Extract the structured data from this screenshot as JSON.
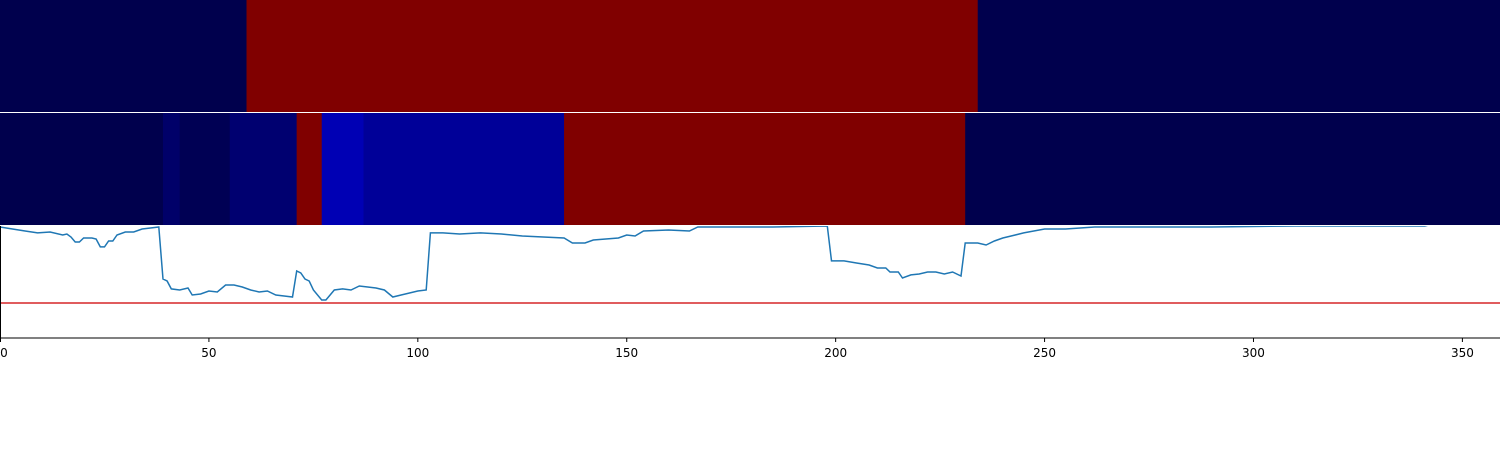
{
  "chart_data": {
    "type": "heatmap-line",
    "colormap": "seismic",
    "xlim": [
      0,
      359
    ],
    "xticks": [
      0,
      50,
      100,
      150,
      200,
      250,
      300,
      350
    ],
    "heatmaps": [
      {
        "segments": [
          {
            "start": 0,
            "end": 59,
            "value": 0
          },
          {
            "start": 59,
            "end": 234,
            "value": 1
          },
          {
            "start": 234,
            "end": 359,
            "value": 0
          }
        ]
      },
      {
        "segments": [
          {
            "start": 0,
            "end": 39,
            "value": 0
          },
          {
            "start": 39,
            "end": 43,
            "value": 0.04
          },
          {
            "start": 43,
            "end": 55,
            "value": 0.01
          },
          {
            "start": 55,
            "end": 71,
            "value": 0.05
          },
          {
            "start": 71,
            "end": 77,
            "value": 1
          },
          {
            "start": 77,
            "end": 87,
            "value": 0.145
          },
          {
            "start": 87,
            "end": 135,
            "value": 0.106
          },
          {
            "start": 135,
            "end": 231,
            "value": 1
          },
          {
            "start": 231,
            "end": 359,
            "value": 0
          }
        ]
      }
    ],
    "ylim": [
      0,
      1
    ],
    "threshold": 0.312,
    "threshold_color": "#d62728",
    "line_color": "#1f77b4",
    "x": [
      0,
      3,
      6,
      9,
      12,
      15,
      16,
      17,
      18,
      19,
      20,
      22,
      23,
      24,
      25,
      26,
      27,
      28,
      30,
      32,
      34,
      36,
      38,
      39,
      40,
      41,
      43,
      45,
      46,
      48,
      50,
      52,
      54,
      56,
      58,
      60,
      62,
      64,
      66,
      68,
      70,
      71,
      72,
      73,
      74,
      75,
      77,
      78,
      79,
      80,
      82,
      84,
      86,
      88,
      90,
      92,
      94,
      96,
      98,
      100,
      102,
      103,
      106,
      110,
      115,
      120,
      125,
      130,
      135,
      137,
      140,
      142,
      145,
      148,
      150,
      152,
      154,
      160,
      165,
      167,
      175,
      185,
      198,
      199,
      202,
      205,
      208,
      210,
      212,
      213,
      215,
      216,
      218,
      220,
      222,
      224,
      226,
      228,
      230,
      231,
      234,
      236,
      238,
      240,
      242,
      245,
      250,
      255,
      262,
      270,
      290,
      310,
      330,
      341,
      343,
      359
    ],
    "values": [
      0.991,
      0.973,
      0.955,
      0.938,
      0.946,
      0.92,
      0.929,
      0.902,
      0.857,
      0.857,
      0.893,
      0.893,
      0.884,
      0.813,
      0.813,
      0.866,
      0.866,
      0.92,
      0.946,
      0.946,
      0.973,
      0.982,
      0.991,
      0.527,
      0.509,
      0.438,
      0.429,
      0.446,
      0.384,
      0.393,
      0.42,
      0.411,
      0.473,
      0.473,
      0.455,
      0.429,
      0.411,
      0.42,
      0.384,
      0.375,
      0.366,
      0.598,
      0.58,
      0.527,
      0.509,
      0.429,
      0.339,
      0.339,
      0.384,
      0.429,
      0.438,
      0.429,
      0.464,
      0.455,
      0.446,
      0.429,
      0.366,
      0.384,
      0.402,
      0.42,
      0.429,
      0.938,
      0.938,
      0.929,
      0.938,
      0.929,
      0.911,
      0.902,
      0.893,
      0.848,
      0.848,
      0.875,
      0.884,
      0.893,
      0.92,
      0.911,
      0.955,
      0.964,
      0.955,
      0.991,
      0.991,
      0.991,
      1.0,
      0.688,
      0.688,
      0.67,
      0.652,
      0.625,
      0.625,
      0.589,
      0.589,
      0.536,
      0.563,
      0.571,
      0.589,
      0.589,
      0.571,
      0.589,
      0.554,
      0.848,
      0.848,
      0.83,
      0.866,
      0.893,
      0.911,
      0.938,
      0.973,
      0.973,
      0.991,
      0.991,
      0.991,
      1.0,
      1.0,
      1.0,
      1.018,
      1.036
    ]
  }
}
